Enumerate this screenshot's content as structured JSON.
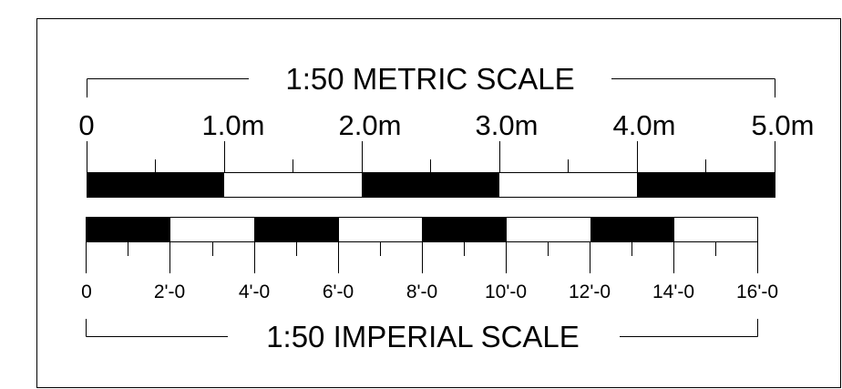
{
  "metric_scale": {
    "title": "1:50 METRIC SCALE",
    "labels": [
      "0",
      "1.0m",
      "2.0m",
      "3.0m",
      "4.0m",
      "5.0m"
    ]
  },
  "imperial_scale": {
    "title": "1:50 IMPERIAL SCALE",
    "labels": [
      "0",
      "2'-0",
      "4'-0",
      "6'-0",
      "8'-0",
      "10'-0",
      "12'-0",
      "14'-0",
      "16'-0"
    ]
  },
  "colors": {
    "ink": "#000000",
    "paper": "#ffffff"
  }
}
